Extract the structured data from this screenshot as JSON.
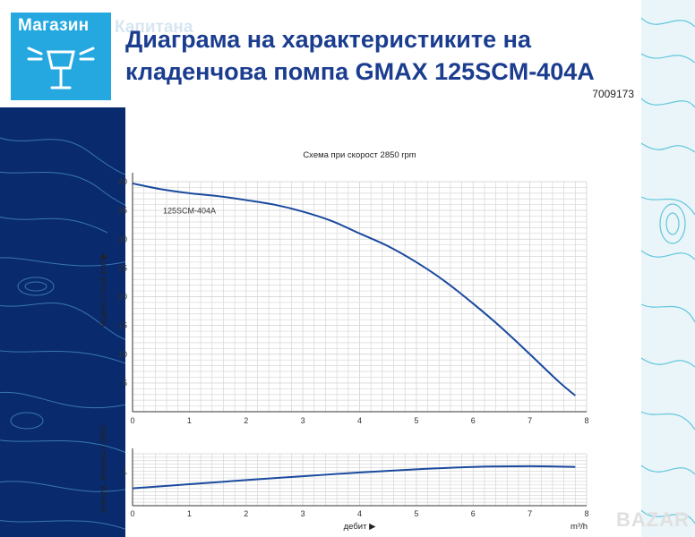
{
  "logo": {
    "text": "Магазин",
    "ghost_text": "Капитана"
  },
  "title": "Диаграма на характеристиките на кладенчова помпа GMAX 125SCM-404A",
  "product_code": "7009173",
  "watermark": "BAZAR",
  "colors": {
    "brand_blue": "#25a8e0",
    "title_blue": "#1b3d8f",
    "curve_blue": "#1a4a9e",
    "dark_navy": "#0a2a6e"
  },
  "chart_data": [
    {
      "type": "line",
      "title": "Схема при скорост 2850 rpm",
      "xlabel": "",
      "ylabel": "Воден стълб (m)",
      "x_ticks": [
        0,
        1,
        2,
        3,
        4,
        5,
        6,
        7,
        8
      ],
      "y_ticks": [
        5,
        10,
        15,
        20,
        25,
        30,
        35,
        40
      ],
      "xlim": [
        0,
        8
      ],
      "ylim": [
        0,
        40
      ],
      "grid": true,
      "series": [
        {
          "name": "125SCM-404A",
          "x": [
            0,
            0.5,
            1,
            1.5,
            2,
            2.5,
            3,
            3.5,
            4,
            4.5,
            5,
            5.5,
            6,
            6.5,
            7,
            7.5,
            7.8
          ],
          "y": [
            39.7,
            38.7,
            38.0,
            37.5,
            36.8,
            36.0,
            34.8,
            33.2,
            31.0,
            28.8,
            26.0,
            22.7,
            18.8,
            14.6,
            10.0,
            5.3,
            2.8
          ]
        }
      ]
    },
    {
      "type": "line",
      "title": "",
      "xlabel": "дебит",
      "x_unit": "m³/h",
      "ylabel": "консум. мощност (kW)",
      "x_ticks": [
        0,
        1,
        2,
        3,
        4,
        5,
        6,
        7,
        8
      ],
      "y_ticks": [
        1
      ],
      "xlim": [
        0,
        8
      ],
      "ylim": [
        0,
        1.5
      ],
      "grid": true,
      "series": [
        {
          "x": [
            0,
            1,
            2,
            3,
            4,
            5,
            6,
            7,
            7.8
          ],
          "y": [
            0.5,
            0.62,
            0.74,
            0.85,
            0.96,
            1.05,
            1.12,
            1.14,
            1.12
          ]
        }
      ]
    }
  ]
}
